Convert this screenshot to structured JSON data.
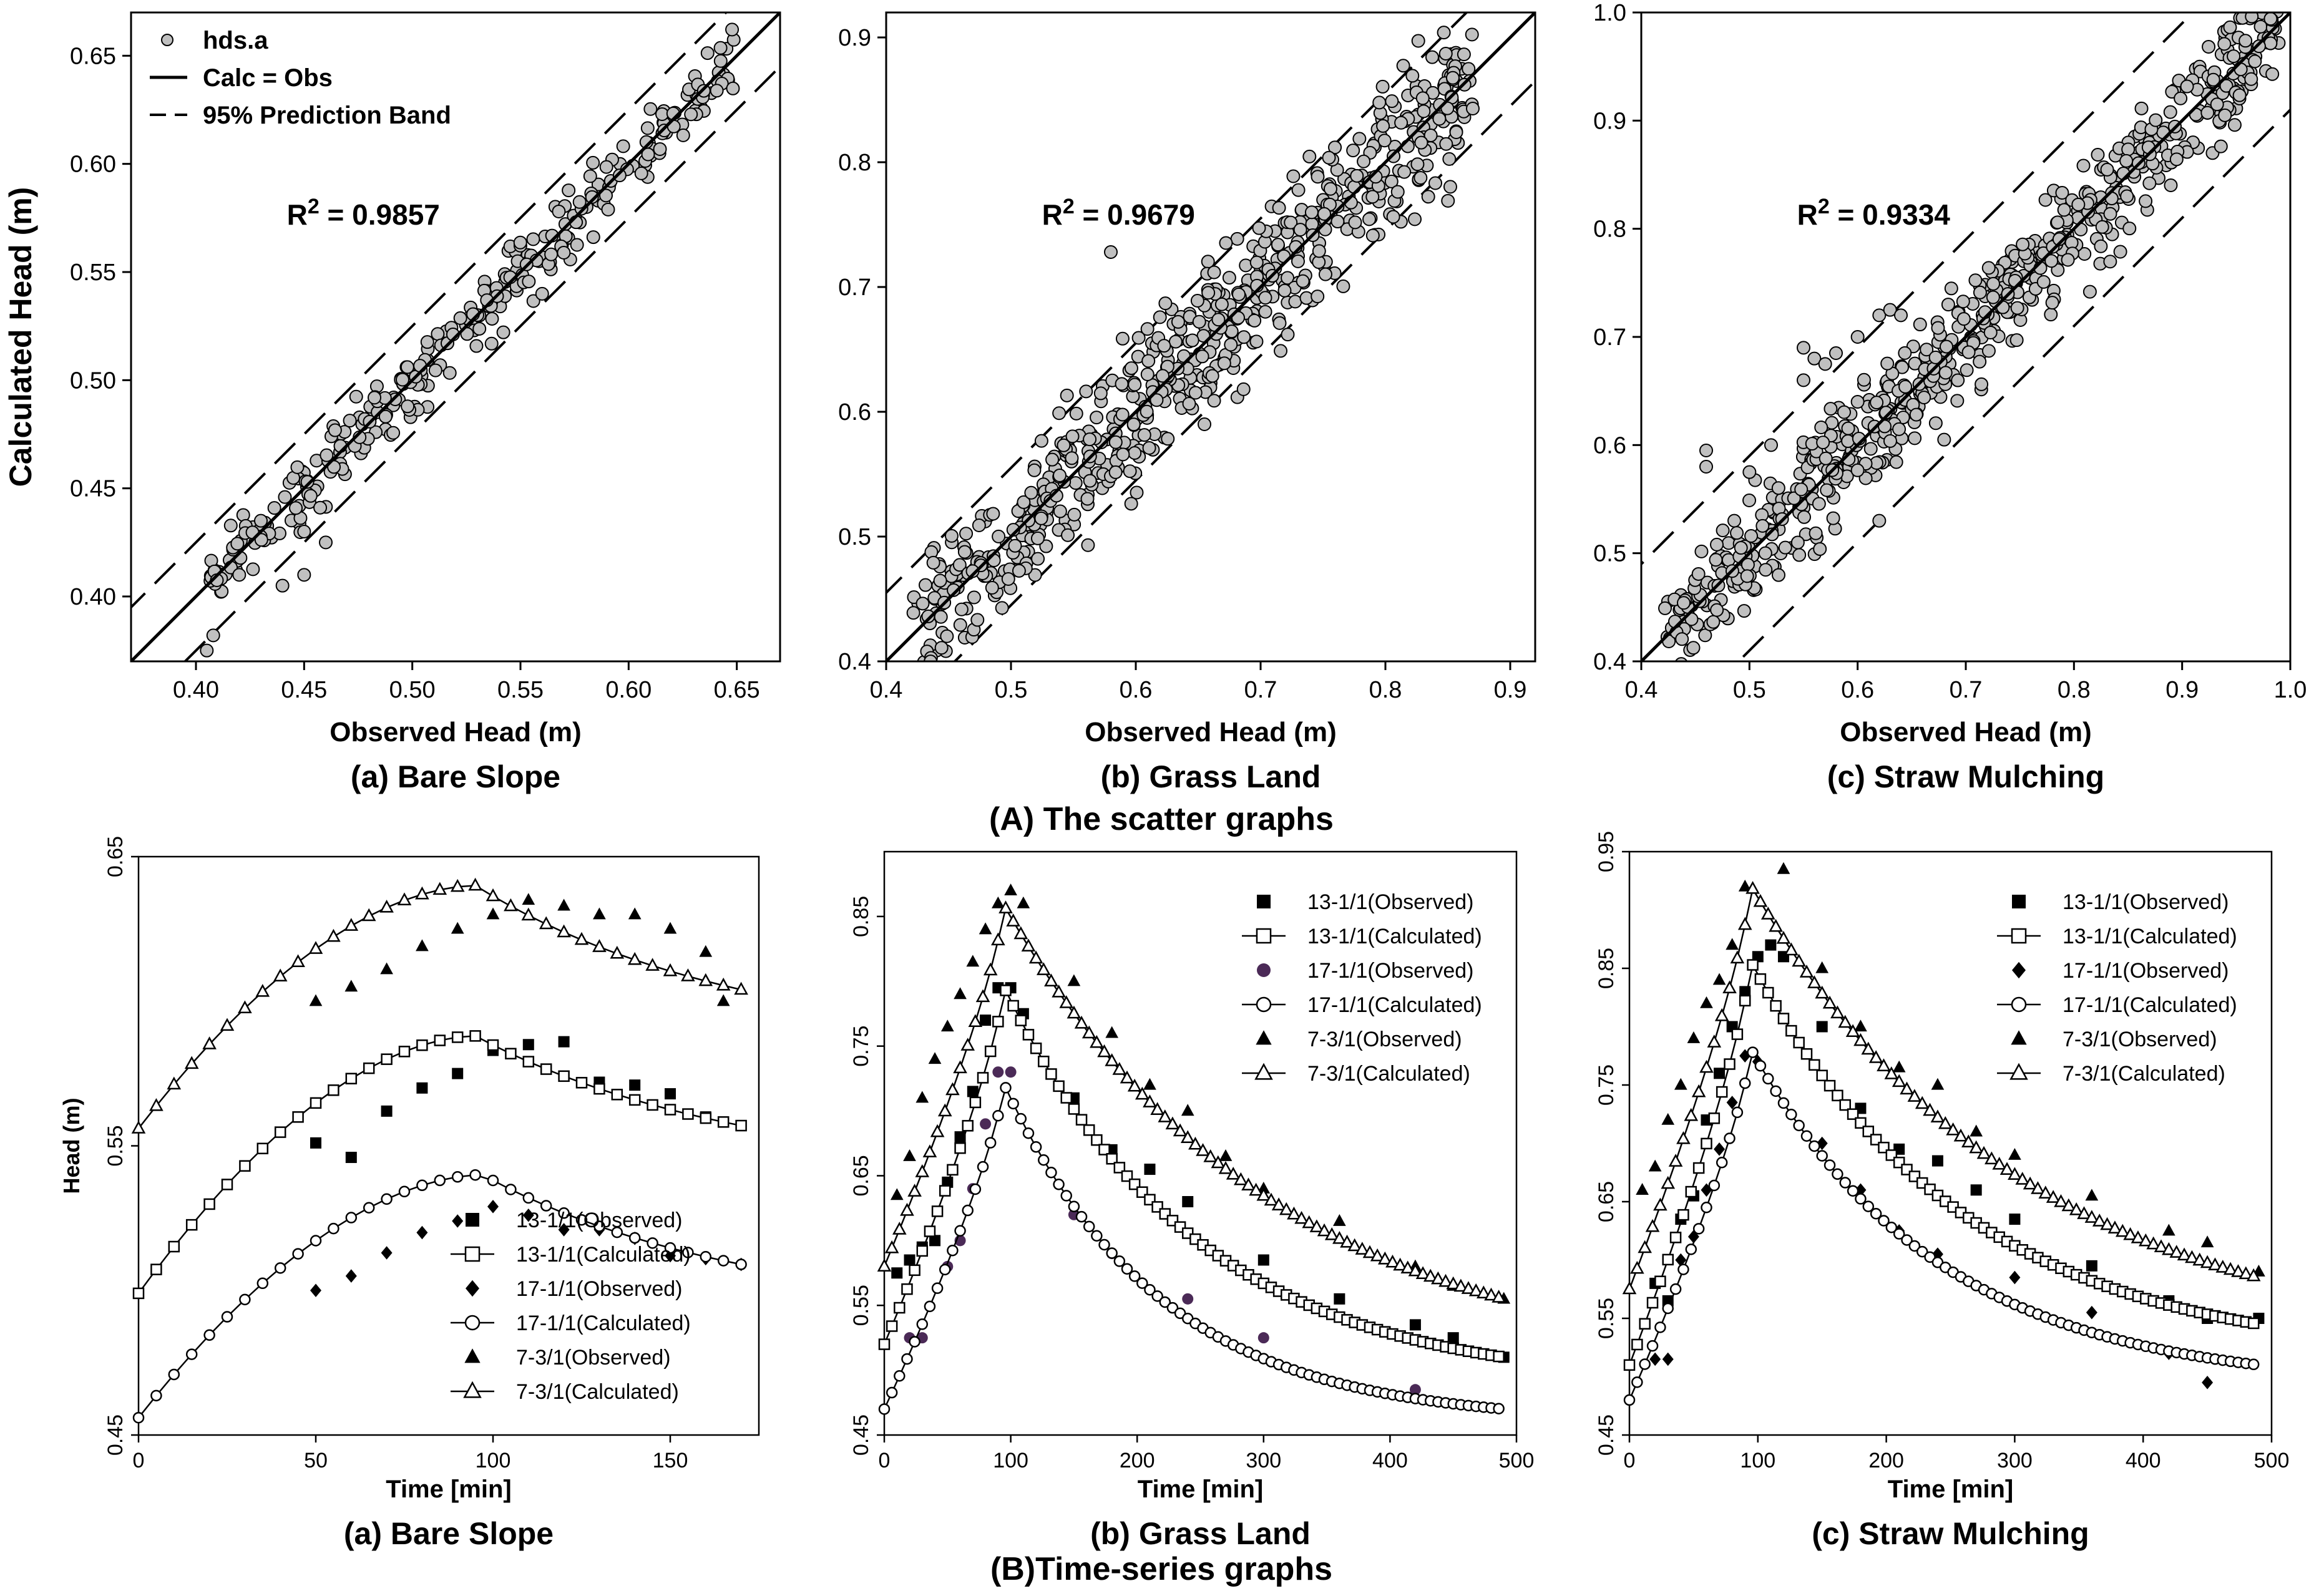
{
  "section_titles": {
    "scatter": "(A) The scatter graphs",
    "timeseries": "(B)Time-series graphs"
  },
  "chart_data": [
    {
      "id": "scatter-bare",
      "type": "scatter",
      "title": "(a) Bare Slope",
      "xlabel": "Observed Head (m)",
      "ylabel": "Calculated Head (m)",
      "xlim": [
        0.37,
        0.67
      ],
      "ylim": [
        0.37,
        0.67
      ],
      "xticks": [
        0.4,
        0.45,
        0.5,
        0.55,
        0.6,
        0.65
      ],
      "yticks": [
        0.4,
        0.45,
        0.5,
        0.55,
        0.6,
        0.65
      ],
      "tick_decimals": 2,
      "r2_label": "R",
      "r2_sup": "2",
      "r2_value": " = 0.9857",
      "band": 0.025,
      "legend": {
        "items": [
          "hds.a",
          "Calc = Obs",
          "95% Prediction Band"
        ]
      },
      "data_range": [
        0.405,
        0.65
      ],
      "noise": 0.008,
      "n_points": 320,
      "seed": 7,
      "extra_points": [
        [
          0.405,
          0.375
        ],
        [
          0.408,
          0.382
        ],
        [
          0.42,
          0.41
        ],
        [
          0.44,
          0.405
        ],
        [
          0.45,
          0.41
        ],
        [
          0.43,
          0.435
        ],
        [
          0.45,
          0.43
        ],
        [
          0.46,
          0.425
        ]
      ]
    },
    {
      "id": "scatter-grass",
      "type": "scatter",
      "title": "(b) Grass Land",
      "xlabel": "Observed Head (m)",
      "ylabel": "",
      "xlim": [
        0.4,
        0.92
      ],
      "ylim": [
        0.4,
        0.92
      ],
      "xticks": [
        0.4,
        0.5,
        0.6,
        0.7,
        0.8,
        0.9
      ],
      "yticks": [
        0.4,
        0.5,
        0.6,
        0.7,
        0.8,
        0.9
      ],
      "tick_decimals": 1,
      "r2_label": "R",
      "r2_sup": "2",
      "r2_value": " = 0.9679",
      "band": 0.055,
      "data_range": [
        0.42,
        0.87
      ],
      "noise": 0.028,
      "n_points": 650,
      "seed": 13,
      "extra_points": [
        [
          0.58,
          0.728
        ],
        [
          0.655,
          0.59
        ],
        [
          0.87,
          0.843
        ]
      ]
    },
    {
      "id": "scatter-straw",
      "type": "scatter",
      "title": "(c) Straw Mulching",
      "xlabel": "Observed Head (m)",
      "ylabel": "",
      "xlim": [
        0.4,
        1.0
      ],
      "ylim": [
        0.4,
        1.0
      ],
      "xticks": [
        0.4,
        0.5,
        0.6,
        0.7,
        0.8,
        0.9,
        1.0
      ],
      "yticks": [
        0.4,
        0.5,
        0.6,
        0.7,
        0.8,
        0.9,
        1.0
      ],
      "tick_decimals": 1,
      "r2_label": "R",
      "r2_sup": "2",
      "r2_value": " = 0.9334",
      "band": 0.09,
      "data_range": [
        0.42,
        0.99
      ],
      "noise": 0.025,
      "n_points": 650,
      "seed": 29,
      "extra_points": [
        [
          0.46,
          0.595
        ],
        [
          0.46,
          0.58
        ],
        [
          0.55,
          0.69
        ],
        [
          0.56,
          0.68
        ],
        [
          0.57,
          0.675
        ],
        [
          0.58,
          0.685
        ],
        [
          0.6,
          0.7
        ],
        [
          0.62,
          0.72
        ],
        [
          0.63,
          0.725
        ],
        [
          0.64,
          0.72
        ],
        [
          0.55,
          0.66
        ],
        [
          0.6,
          0.64
        ],
        [
          0.62,
          0.53
        ],
        [
          0.68,
          0.605
        ],
        [
          0.5,
          0.575
        ],
        [
          0.52,
          0.6
        ]
      ]
    },
    {
      "id": "ts-bare",
      "type": "line",
      "title": "(a) Bare Slope",
      "xlabel": "Time  [min]",
      "ylabel": "Head (m)",
      "xlim": [
        0,
        175
      ],
      "ylim": [
        0.45,
        0.65
      ],
      "xticks": [
        0,
        50,
        100,
        150
      ],
      "yticks": [
        0.45,
        0.55,
        0.65
      ],
      "tick_decimals": 2,
      "x_end": 170,
      "legend_pos": "bottom-right",
      "series": [
        {
          "name": "13-1/1(Observed)",
          "kind": "observed",
          "marker": "square-filled",
          "points": [
            [
              50,
              0.551
            ],
            [
              60,
              0.546
            ],
            [
              70,
              0.562
            ],
            [
              80,
              0.57
            ],
            [
              90,
              0.575
            ],
            [
              100,
              0.583
            ],
            [
              110,
              0.585
            ],
            [
              120,
              0.586
            ],
            [
              130,
              0.572
            ],
            [
              140,
              0.571
            ],
            [
              150,
              0.568
            ],
            [
              160,
              0.56
            ],
            [
              170,
              0.557
            ]
          ]
        },
        {
          "name": "13-1/1(Calculated)",
          "kind": "calculated",
          "marker": "square-open",
          "start": 0.499,
          "peak": 0.588,
          "tpeak": 95,
          "end": 0.557,
          "exp_rise": 1.8,
          "exp_fall": 1.0,
          "step": 5
        },
        {
          "name": "17-1/1(Observed)",
          "kind": "observed",
          "marker": "diamond-filled",
          "points": [
            [
              50,
              0.5
            ],
            [
              60,
              0.505
            ],
            [
              70,
              0.513
            ],
            [
              80,
              0.52
            ],
            [
              90,
              0.524
            ],
            [
              100,
              0.529
            ],
            [
              110,
              0.526
            ],
            [
              120,
              0.521
            ],
            [
              130,
              0.521
            ],
            [
              140,
              0.518
            ],
            [
              150,
              0.512
            ],
            [
              160,
              0.511
            ],
            [
              170,
              0.509
            ]
          ]
        },
        {
          "name": "17-1/1(Calculated)",
          "kind": "calculated",
          "marker": "circle-open",
          "start": 0.456,
          "peak": 0.54,
          "tpeak": 97,
          "end": 0.509,
          "exp_rise": 1.8,
          "exp_fall": 1.0,
          "step": 5
        },
        {
          "name": "7-3/1(Observed)",
          "kind": "observed",
          "marker": "triangle-filled",
          "points": [
            [
              50,
              0.6
            ],
            [
              60,
              0.605
            ],
            [
              70,
              0.611
            ],
            [
              80,
              0.619
            ],
            [
              90,
              0.625
            ],
            [
              100,
              0.63
            ],
            [
              110,
              0.635
            ],
            [
              120,
              0.633
            ],
            [
              130,
              0.63
            ],
            [
              140,
              0.63
            ],
            [
              150,
              0.625
            ],
            [
              160,
              0.617
            ],
            [
              165,
              0.6
            ]
          ]
        },
        {
          "name": "7-3/1(Calculated)",
          "kind": "calculated",
          "marker": "triangle-open",
          "start": 0.556,
          "peak": 0.64,
          "tpeak": 95,
          "end": 0.604,
          "exp_rise": 1.8,
          "exp_fall": 1.0,
          "step": 5
        }
      ]
    },
    {
      "id": "ts-grass",
      "type": "line",
      "title": "(b) Grass Land",
      "xlabel": "Time  [min]",
      "ylabel": "",
      "xlim": [
        0,
        500
      ],
      "ylim": [
        0.45,
        0.9
      ],
      "xticks": [
        0,
        100,
        200,
        300,
        400,
        500
      ],
      "yticks": [
        0.45,
        0.55,
        0.65,
        0.75,
        0.85
      ],
      "tick_decimals": 2,
      "x_end": 490,
      "legend_pos": "top-right",
      "series": [
        {
          "name": "13-1/1(Observed)",
          "kind": "observed",
          "marker": "square-filled",
          "points": [
            [
              10,
              0.575
            ],
            [
              20,
              0.585
            ],
            [
              30,
              0.595
            ],
            [
              40,
              0.6
            ],
            [
              50,
              0.645
            ],
            [
              60,
              0.68
            ],
            [
              70,
              0.715
            ],
            [
              80,
              0.77
            ],
            [
              90,
              0.795
            ],
            [
              100,
              0.795
            ],
            [
              110,
              0.775
            ],
            [
              150,
              0.71
            ],
            [
              180,
              0.67
            ],
            [
              210,
              0.655
            ],
            [
              240,
              0.63
            ],
            [
              300,
              0.585
            ],
            [
              360,
              0.555
            ],
            [
              420,
              0.535
            ],
            [
              450,
              0.525
            ],
            [
              490,
              0.51
            ]
          ]
        },
        {
          "name": "13-1/1(Calculated)",
          "kind": "calculated",
          "marker": "square-open",
          "start": 0.52,
          "peak": 0.795,
          "tpeak": 95,
          "end": 0.51,
          "exp_rise": 0.8,
          "exp_fall": 2.6,
          "step": 6
        },
        {
          "name": "17-1/1(Observed)",
          "kind": "observed",
          "marker": "circle-filled-purple",
          "points": [
            [
              20,
              0.525
            ],
            [
              30,
              0.525
            ],
            [
              50,
              0.58
            ],
            [
              60,
              0.6
            ],
            [
              70,
              0.64
            ],
            [
              80,
              0.69
            ],
            [
              90,
              0.73
            ],
            [
              100,
              0.73
            ],
            [
              150,
              0.62
            ],
            [
              180,
              0.59
            ],
            [
              240,
              0.555
            ],
            [
              300,
              0.525
            ],
            [
              420,
              0.485
            ]
          ]
        },
        {
          "name": "17-1/1(Calculated)",
          "kind": "calculated",
          "marker": "circle-open",
          "start": 0.47,
          "peak": 0.72,
          "tpeak": 95,
          "end": 0.47,
          "exp_rise": 0.8,
          "exp_fall": 3.2,
          "step": 6
        },
        {
          "name": "7-3/1(Observed)",
          "kind": "observed",
          "marker": "triangle-filled",
          "points": [
            [
              10,
              0.635
            ],
            [
              20,
              0.665
            ],
            [
              30,
              0.71
            ],
            [
              40,
              0.74
            ],
            [
              50,
              0.765
            ],
            [
              60,
              0.79
            ],
            [
              70,
              0.815
            ],
            [
              80,
              0.84
            ],
            [
              90,
              0.86
            ],
            [
              100,
              0.87
            ],
            [
              110,
              0.86
            ],
            [
              150,
              0.8
            ],
            [
              180,
              0.76
            ],
            [
              210,
              0.72
            ],
            [
              240,
              0.7
            ],
            [
              270,
              0.665
            ],
            [
              300,
              0.64
            ],
            [
              360,
              0.615
            ],
            [
              420,
              0.58
            ],
            [
              450,
              0.565
            ],
            [
              490,
              0.555
            ]
          ]
        },
        {
          "name": "7-3/1(Calculated)",
          "kind": "calculated",
          "marker": "triangle-open",
          "start": 0.58,
          "peak": 0.858,
          "tpeak": 95,
          "end": 0.555,
          "exp_rise": 0.8,
          "exp_fall": 1.9,
          "step": 6
        }
      ]
    },
    {
      "id": "ts-straw",
      "type": "line",
      "title": "(c) Straw Mulching",
      "xlabel": "Time  [min]",
      "ylabel": "",
      "xlim": [
        0,
        500
      ],
      "ylim": [
        0.45,
        0.95
      ],
      "xticks": [
        0,
        100,
        200,
        300,
        400,
        500
      ],
      "yticks": [
        0.45,
        0.55,
        0.65,
        0.75,
        0.85,
        0.95
      ],
      "tick_decimals": 2,
      "x_end": 490,
      "legend_pos": "top-right",
      "series": [
        {
          "name": "13-1/1(Observed)",
          "kind": "observed",
          "marker": "square-filled",
          "points": [
            [
              20,
              0.58
            ],
            [
              30,
              0.565
            ],
            [
              40,
              0.635
            ],
            [
              50,
              0.655
            ],
            [
              60,
              0.72
            ],
            [
              70,
              0.76
            ],
            [
              80,
              0.8
            ],
            [
              90,
              0.83
            ],
            [
              100,
              0.86
            ],
            [
              110,
              0.87
            ],
            [
              120,
              0.86
            ],
            [
              150,
              0.8
            ],
            [
              180,
              0.73
            ],
            [
              210,
              0.695
            ],
            [
              240,
              0.685
            ],
            [
              270,
              0.66
            ],
            [
              300,
              0.635
            ],
            [
              360,
              0.595
            ],
            [
              420,
              0.565
            ],
            [
              450,
              0.55
            ],
            [
              490,
              0.55
            ]
          ]
        },
        {
          "name": "13-1/1(Calculated)",
          "kind": "calculated",
          "marker": "square-open",
          "start": 0.51,
          "peak": 0.855,
          "tpeak": 95,
          "end": 0.545,
          "exp_rise": 0.8,
          "exp_fall": 2.4,
          "step": 6
        },
        {
          "name": "17-1/1(Observed)",
          "kind": "observed",
          "marker": "diamond-filled",
          "points": [
            [
              20,
              0.515
            ],
            [
              30,
              0.515
            ],
            [
              40,
              0.6
            ],
            [
              50,
              0.62
            ],
            [
              60,
              0.66
            ],
            [
              70,
              0.695
            ],
            [
              80,
              0.735
            ],
            [
              90,
              0.775
            ],
            [
              100,
              0.77
            ],
            [
              150,
              0.7
            ],
            [
              180,
              0.66
            ],
            [
              210,
              0.625
            ],
            [
              240,
              0.605
            ],
            [
              300,
              0.585
            ],
            [
              360,
              0.555
            ],
            [
              420,
              0.52
            ],
            [
              450,
              0.495
            ]
          ]
        },
        {
          "name": "17-1/1(Calculated)",
          "kind": "calculated",
          "marker": "circle-open",
          "start": 0.48,
          "peak": 0.78,
          "tpeak": 95,
          "end": 0.51,
          "exp_rise": 0.8,
          "exp_fall": 2.7,
          "step": 6
        },
        {
          "name": "7-3/1(Observed)",
          "kind": "observed",
          "marker": "triangle-filled",
          "points": [
            [
              10,
              0.66
            ],
            [
              20,
              0.68
            ],
            [
              30,
              0.72
            ],
            [
              40,
              0.75
            ],
            [
              50,
              0.79
            ],
            [
              60,
              0.82
            ],
            [
              70,
              0.84
            ],
            [
              80,
              0.87
            ],
            [
              90,
              0.92
            ],
            [
              120,
              0.935
            ],
            [
              150,
              0.85
            ],
            [
              180,
              0.8
            ],
            [
              210,
              0.765
            ],
            [
              240,
              0.75
            ],
            [
              270,
              0.71
            ],
            [
              300,
              0.69
            ],
            [
              360,
              0.655
            ],
            [
              420,
              0.625
            ],
            [
              450,
              0.615
            ],
            [
              490,
              0.59
            ]
          ]
        },
        {
          "name": "7-3/1(Calculated)",
          "kind": "calculated",
          "marker": "triangle-open",
          "start": 0.575,
          "peak": 0.92,
          "tpeak": 95,
          "end": 0.585,
          "exp_rise": 0.8,
          "exp_fall": 1.9,
          "step": 6
        }
      ]
    }
  ]
}
